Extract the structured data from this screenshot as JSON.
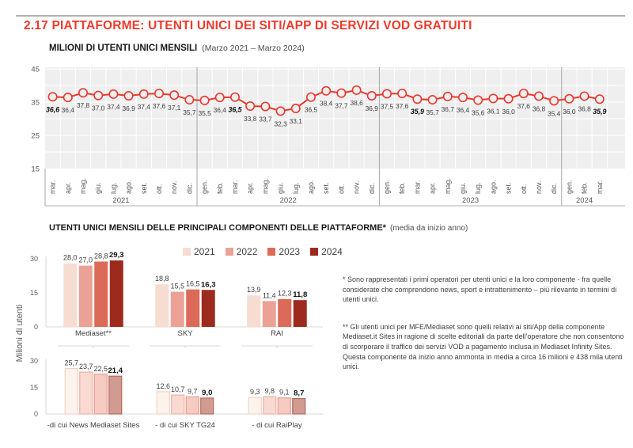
{
  "header": {
    "title": "2.17 PIATTAFORME: UTENTI UNICI DEI SITI/APP DI SERVIZI VOD GRATUITI",
    "title_color": "#ee3a2c"
  },
  "line_chart_header": {
    "title_bold": "MILIONI DI UTENTI UNICI MENSILI",
    "title_period": "(Marzo 2021 – Marzo 2024)"
  },
  "bar_section_header": {
    "title_bold": "UTENTI UNICI MENSILI DELLE PRINCIPALI COMPONENTI DELLE PIATTAFORME*",
    "title_period": "(media da inizio anno)"
  },
  "y_axis_title": "Milioni di utenti",
  "legend": {
    "items": [
      {
        "label": "2021",
        "color": "#f7dcd2"
      },
      {
        "label": "2022",
        "color": "#eba195"
      },
      {
        "label": "2023",
        "color": "#dc6a58"
      },
      {
        "label": "2024",
        "color": "#9c2b1e"
      }
    ]
  },
  "footnotes": {
    "note1": "* Sono rappresentati i primi operatori per utenti unici e la loro componente - fra quelle considerate che comprendono news, sport e intrattenimento – più rilevante in termini di utenti unici.",
    "note2": "** Gli utenti unici per MFE/Mediaset sono quelli relativi ai siti/App della componente Mediaset.it Sites in ragione di scelte editoriali da parte dell'operatore che non consentono di scorporare il traffico dei servizi VOD a pagamento inclusa in Mediaset Infinity Sites. Questa componente da inizio anno ammonta in media a circa 16 milioni e 438 mila utenti unici."
  },
  "chart_data": [
    {
      "type": "line",
      "title": "MILIONI DI UTENTI UNICI MENSILI",
      "subtitle": "(Marzo 2021 – Marzo 2024)",
      "ylim": [
        15,
        45
      ],
      "yticks": [
        45,
        35,
        25,
        15
      ],
      "grid": "white gridlines on light gray plot, one column per month, gray separators between years",
      "legend_position": "none",
      "line_color": "#e8382d",
      "plot_bg": "#efefef",
      "year_groups": [
        {
          "year": "2021",
          "months": [
            "mar.",
            "apr.",
            "mag.",
            "giu.",
            "lug.",
            "ago.",
            "set.",
            "ott.",
            "nov.",
            "dic."
          ]
        },
        {
          "year": "2022",
          "months": [
            "gen.",
            "feb.",
            "mar.",
            "apr.",
            "mag.",
            "giu.",
            "lug.",
            "ago.",
            "set.",
            "ott.",
            "nov.",
            "dic."
          ]
        },
        {
          "year": "2023",
          "months": [
            "gen.",
            "feb.",
            "mar.",
            "apr.",
            "mag.",
            "giu.",
            "lug.",
            "ago.",
            "set.",
            "ott.",
            "nov.",
            "dic."
          ]
        },
        {
          "year": "2024",
          "months": [
            "gen.",
            "feb.",
            "mar."
          ]
        }
      ],
      "values": [
        36.6,
        36.4,
        37.8,
        37.0,
        37.4,
        36.9,
        37.4,
        37.6,
        37.1,
        35.7,
        35.5,
        36.4,
        36.5,
        33.8,
        33.7,
        32.3,
        33.1,
        36.5,
        38.4,
        37.7,
        38.6,
        36.9,
        37.5,
        37.6,
        35.9,
        35.7,
        36.7,
        36.4,
        35.6,
        36.1,
        36.0,
        37.6,
        36.8,
        35.4,
        36.0,
        36.8,
        35.9
      ],
      "bold_value_indices": [
        0,
        12,
        24,
        36
      ]
    },
    {
      "type": "bar",
      "title": "UTENTI UNICI MENSILI DELLE PRINCIPALI COMPONENTI DELLE PIATTAFORME*",
      "subtitle": "(media da inizio anno)",
      "ylabel": "Milioni di utenti",
      "ylim": [
        0,
        33
      ],
      "yticks": [
        30,
        15,
        0
      ],
      "legend_position": "top",
      "categories": [
        "Mediaset**",
        "SKY",
        "RAI"
      ],
      "series": [
        {
          "name": "2021",
          "color": "#f7dcd2",
          "values": [
            28.0,
            18.8,
            13.9
          ]
        },
        {
          "name": "2022",
          "color": "#eba195",
          "values": [
            27.0,
            15.5,
            11.4
          ]
        },
        {
          "name": "2023",
          "color": "#dc6a58",
          "values": [
            28.8,
            16.5,
            12.3
          ]
        },
        {
          "name": "2024",
          "color": "#9c2b1e",
          "values": [
            29.3,
            16.3,
            11.8
          ],
          "bold_labels": true
        }
      ]
    },
    {
      "type": "bar",
      "style": "outlined",
      "ylim": [
        0,
        33
      ],
      "yticks": [
        30,
        15,
        0
      ],
      "legend_position": "none",
      "categories": [
        "-di cui News Mediaset Sites",
        "- di cui SKY TG24",
        "- di cui RaiPlay"
      ],
      "series": [
        {
          "name": "2021",
          "fill": "#fdf3ed",
          "border": "#f2d3c6",
          "values": [
            25.7,
            12.6,
            9.3
          ]
        },
        {
          "name": "2022",
          "fill": "#f8dad2",
          "border": "#eeb2a6",
          "values": [
            23.7,
            10.7,
            9.8
          ]
        },
        {
          "name": "2023",
          "fill": "#f5cbc2",
          "border": "#e89c8d",
          "values": [
            22.5,
            9.7,
            9.1
          ]
        },
        {
          "name": "2024",
          "fill": "#d29b91",
          "border": "#b26a5f",
          "values": [
            21.4,
            9.0,
            8.7
          ],
          "bold_labels": true
        }
      ]
    }
  ]
}
